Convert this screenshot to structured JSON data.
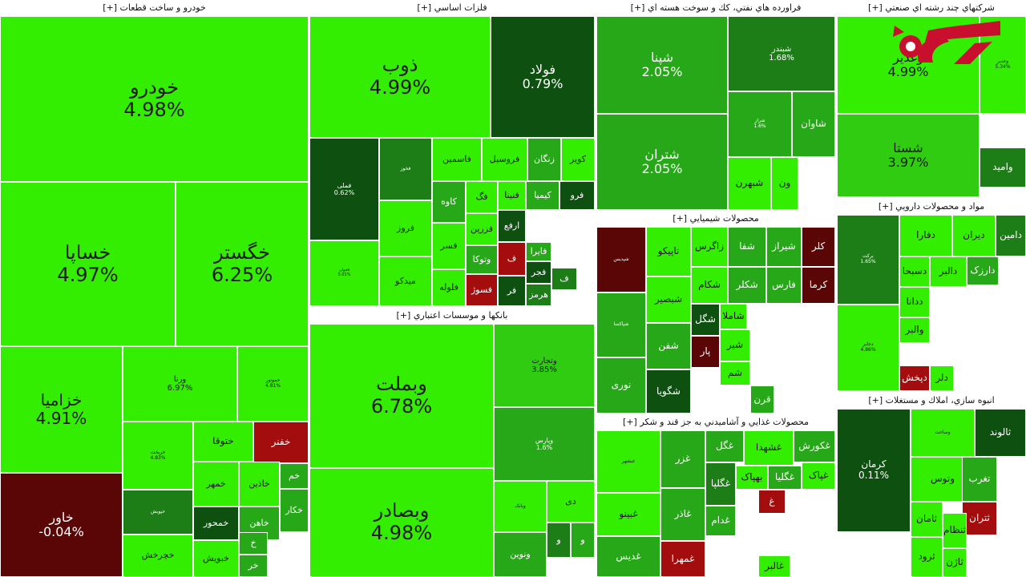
{
  "colors": {
    "bright_green": "#33ee00",
    "mid_green": "#2fcc12",
    "green": "#27a818",
    "dark_green": "#1d7e18",
    "darkest_green": "#0e5010",
    "red": "#a30d0d",
    "dark_red": "#5a0606",
    "header_text": "#111111"
  },
  "sectors": [
    {
      "name": "خودرو و ساخت قطعات [+]",
      "tiles": [
        {
          "symbol": "خودرو",
          "change": "4.98%",
          "color": "bright_green"
        },
        {
          "symbol": "خساپا",
          "change": "4.97%",
          "color": "bright_green"
        },
        {
          "symbol": "خگستر",
          "change": "6.25%",
          "color": "bright_green"
        },
        {
          "symbol": "خزامیا",
          "change": "4.91%",
          "color": "bright_green"
        },
        {
          "symbol": "خاور",
          "change": "-0.04%",
          "color": "dark_red"
        },
        {
          "symbol": "ورنا",
          "change": "6.97%",
          "color": "bright_green"
        },
        {
          "symbol": "خموتور",
          "change": "4.81%",
          "color": "bright_green"
        },
        {
          "symbol": "خریخت",
          "change": "4.83%",
          "color": "bright_green"
        },
        {
          "symbol": "ختوقا",
          "change": "",
          "color": "bright_green"
        },
        {
          "symbol": "خفنر",
          "change": "",
          "color": "red"
        },
        {
          "symbol": "خمهر",
          "change": "",
          "color": "bright_green"
        },
        {
          "symbol": "خاذین",
          "change": "",
          "color": "bright_green"
        },
        {
          "symbol": "خم",
          "change": "",
          "color": "green"
        },
        {
          "symbol": "خپویش",
          "change": "",
          "color": "dark_green"
        },
        {
          "symbol": "خمحور",
          "change": "",
          "color": "darkest_green"
        },
        {
          "symbol": "خاهن",
          "change": "",
          "color": "green"
        },
        {
          "symbol": "خکار",
          "change": "",
          "color": "green"
        },
        {
          "symbol": "خچرخش",
          "change": "",
          "color": "bright_green"
        },
        {
          "symbol": "خبویش",
          "change": "",
          "color": "bright_green"
        },
        {
          "symbol": "خ",
          "change": "",
          "color": "green"
        },
        {
          "symbol": "خر",
          "change": "",
          "color": "green"
        }
      ]
    },
    {
      "name": "فلزات اساسي [+]",
      "tiles": [
        {
          "symbol": "ذوب",
          "change": "4.99%",
          "color": "bright_green"
        },
        {
          "symbol": "فولاد",
          "change": "0.79%",
          "color": "darkest_green"
        },
        {
          "symbol": "فملی",
          "change": "0.62%",
          "color": "darkest_green"
        },
        {
          "symbol": "فخوز",
          "change": "",
          "color": "dark_green"
        },
        {
          "symbol": "فاسمین",
          "change": "",
          "color": "bright_green"
        },
        {
          "symbol": "فروسیل",
          "change": "",
          "color": "bright_green"
        },
        {
          "symbol": "زنگان",
          "change": "",
          "color": "green"
        },
        {
          "symbol": "کویر",
          "change": "",
          "color": "bright_green"
        },
        {
          "symbol": "فروز",
          "change": "",
          "color": "bright_green"
        },
        {
          "symbol": "کاوه",
          "change": "",
          "color": "green"
        },
        {
          "symbol": "فگ",
          "change": "",
          "color": "bright_green"
        },
        {
          "symbol": "فنینا",
          "change": "",
          "color": "bright_green"
        },
        {
          "symbol": "کیمیا",
          "change": "",
          "color": "green"
        },
        {
          "symbol": "فرو",
          "change": "",
          "color": "darkest_green"
        },
        {
          "symbol": "فسر",
          "change": "",
          "color": "bright_green"
        },
        {
          "symbol": "فزرین",
          "change": "",
          "color": "bright_green"
        },
        {
          "symbol": "ارفع",
          "change": "",
          "color": "darkest_green"
        },
        {
          "symbol": "فجهان",
          "change": "3.01%",
          "color": "bright_green"
        },
        {
          "symbol": "میدکو",
          "change": "",
          "color": "bright_green"
        },
        {
          "symbol": "فلوله",
          "change": "",
          "color": "bright_green"
        },
        {
          "symbol": "وتوکا",
          "change": "",
          "color": "green"
        },
        {
          "symbol": "فسوژ",
          "change": "",
          "color": "red"
        },
        {
          "symbol": "ف",
          "change": "",
          "color": "red"
        },
        {
          "symbol": "فایرا",
          "change": "",
          "color": "green"
        },
        {
          "symbol": "فجر",
          "change": "",
          "color": "darkest_green"
        },
        {
          "symbol": "فر",
          "change": "",
          "color": "darkest_green"
        },
        {
          "symbol": "هرمز",
          "change": "",
          "color": "dark_green"
        },
        {
          "symbol": "ف",
          "change": "",
          "color": "dark_green"
        }
      ]
    },
    {
      "name": "بانکها و موسسات اعتباري [+]",
      "tiles": [
        {
          "symbol": "وبملت",
          "change": "6.78%",
          "color": "bright_green"
        },
        {
          "symbol": "وتجارت",
          "change": "3.85%",
          "color": "mid_green"
        },
        {
          "symbol": "وپارس",
          "change": "1.6%",
          "color": "green"
        },
        {
          "symbol": "وبصادر",
          "change": "4.98%",
          "color": "bright_green"
        },
        {
          "symbol": "وبانک",
          "change": "",
          "color": "bright_green"
        },
        {
          "symbol": "دی",
          "change": "",
          "color": "bright_green"
        },
        {
          "symbol": "ونوین",
          "change": "",
          "color": "green"
        },
        {
          "symbol": "و",
          "change": "",
          "color": "dark_green"
        },
        {
          "symbol": "و",
          "change": "",
          "color": "green"
        }
      ]
    },
    {
      "name": "فراورده هاي نفتي، كك و سوخت هسته اي [+]",
      "tiles": [
        {
          "symbol": "شپنا",
          "change": "2.05%",
          "color": "green"
        },
        {
          "symbol": "شبندر",
          "change": "1.68%",
          "color": "dark_green"
        },
        {
          "symbol": "شتران",
          "change": "2.05%",
          "color": "green"
        },
        {
          "symbol": "شراز",
          "change": "1.6%",
          "color": "green"
        },
        {
          "symbol": "شاوان",
          "change": "",
          "color": "green"
        },
        {
          "symbol": "شبهرن",
          "change": "",
          "color": "bright_green"
        },
        {
          "symbol": "ون",
          "change": "",
          "color": "bright_green"
        }
      ]
    },
    {
      "name": "محصولات شيميايي [+]",
      "tiles": [
        {
          "symbol": "شپدیس",
          "change": "",
          "color": "dark_red"
        },
        {
          "symbol": "تاپیکو",
          "change": "",
          "color": "bright_green"
        },
        {
          "symbol": "زاگرس",
          "change": "",
          "color": "bright_green"
        },
        {
          "symbol": "شفا",
          "change": "",
          "color": "green"
        },
        {
          "symbol": "شیراز",
          "change": "",
          "color": "green"
        },
        {
          "symbol": "کلر",
          "change": "",
          "color": "dark_red"
        },
        {
          "symbol": "شبصیر",
          "change": "",
          "color": "bright_green"
        },
        {
          "symbol": "شکام",
          "change": "",
          "color": "bright_green"
        },
        {
          "symbol": "شکلر",
          "change": "",
          "color": "green"
        },
        {
          "symbol": "فارس",
          "change": "",
          "color": "green"
        },
        {
          "symbol": "کرما",
          "change": "",
          "color": "dark_red"
        },
        {
          "symbol": "شگل",
          "change": "",
          "color": "darkest_green"
        },
        {
          "symbol": "شاملا",
          "change": "",
          "color": "bright_green"
        },
        {
          "symbol": "شفن",
          "change": "",
          "color": "green"
        },
        {
          "symbol": "شیر",
          "change": "",
          "color": "bright_green"
        },
        {
          "symbol": "پار",
          "change": "",
          "color": "dark_red"
        },
        {
          "symbol": "شم",
          "change": "",
          "color": "bright_green"
        },
        {
          "symbol": "نوری",
          "change": "",
          "color": "green"
        },
        {
          "symbol": "شگویا",
          "change": "",
          "color": "darkest_green"
        },
        {
          "symbol": "قرن",
          "change": "",
          "color": "green"
        },
        {
          "symbol": "شپاکسا",
          "change": "",
          "color": "green"
        }
      ]
    },
    {
      "name": "محصولات غذايي و آشاميدني به جز قند و شكر [+]",
      "tiles": [
        {
          "symbol": "غبشهر",
          "change": "",
          "color": "bright_green"
        },
        {
          "symbol": "غزر",
          "change": "",
          "color": "green"
        },
        {
          "symbol": "غگل",
          "change": "",
          "color": "green"
        },
        {
          "symbol": "غشهدا",
          "change": "",
          "color": "bright_green"
        },
        {
          "symbol": "غکورش",
          "change": "",
          "color": "green"
        },
        {
          "symbol": "غبینو",
          "change": "",
          "color": "bright_green"
        },
        {
          "symbol": "غگلپا",
          "change": "",
          "color": "dark_green"
        },
        {
          "symbol": "بهپاک",
          "change": "",
          "color": "bright_green"
        },
        {
          "symbol": "غگلیا",
          "change": "",
          "color": "green"
        },
        {
          "symbol": "غپاک",
          "change": "",
          "color": "bright_green"
        },
        {
          "symbol": "غاذر",
          "change": "",
          "color": "green"
        },
        {
          "symbol": "غدام",
          "change": "",
          "color": "green"
        },
        {
          "symbol": "غدیس",
          "change": "",
          "color": "green"
        },
        {
          "symbol": "غمهرا",
          "change": "",
          "color": "red"
        },
        {
          "symbol": "غالبر",
          "change": "",
          "color": "bright_green"
        },
        {
          "symbol": "غ",
          "change": "",
          "color": "red"
        }
      ]
    },
    {
      "name": "شركتهاي چند رشته اي صنعتي [+]",
      "tiles": [
        {
          "symbol": "وغدیر",
          "change": "4.99%",
          "color": "bright_green"
        },
        {
          "symbol": "وغدیر",
          "change": "5.34%",
          "color": "bright_green"
        },
        {
          "symbol": "شستا",
          "change": "3.97%",
          "color": "mid_green"
        },
        {
          "symbol": "وامید",
          "change": "",
          "color": "dark_green"
        }
      ]
    },
    {
      "name": "مواد و محصولات دارويي [+]",
      "tiles": [
        {
          "symbol": "برکت",
          "change": "1.65%",
          "color": "dark_green"
        },
        {
          "symbol": "دفارا",
          "change": "",
          "color": "bright_green"
        },
        {
          "symbol": "دیران",
          "change": "",
          "color": "bright_green"
        },
        {
          "symbol": "دامین",
          "change": "",
          "color": "dark_green"
        },
        {
          "symbol": "دسبحا",
          "change": "",
          "color": "bright_green"
        },
        {
          "symbol": "دالبر",
          "change": "",
          "color": "bright_green"
        },
        {
          "symbol": "دارزک",
          "change": "",
          "color": "green"
        },
        {
          "symbol": "دجابر",
          "change": "4.86%",
          "color": "bright_green"
        },
        {
          "symbol": "ددانا",
          "change": "",
          "color": "bright_green"
        },
        {
          "symbol": "والبر",
          "change": "",
          "color": "bright_green"
        },
        {
          "symbol": "دلر",
          "change": "",
          "color": "bright_green"
        },
        {
          "symbol": "دپخش",
          "change": "",
          "color": "red"
        }
      ]
    },
    {
      "name": "انبوه سازي، املاك و مستغلات [+]",
      "tiles": [
        {
          "symbol": "کرمان",
          "change": "0.11%",
          "color": "darkest_green"
        },
        {
          "symbol": "وساخت",
          "change": "",
          "color": "bright_green"
        },
        {
          "symbol": "ثالوند",
          "change": "",
          "color": "darkest_green"
        },
        {
          "symbol": "وتوس",
          "change": "",
          "color": "bright_green"
        },
        {
          "symbol": "ثامان",
          "change": "",
          "color": "bright_green"
        },
        {
          "symbol": "تغرب",
          "change": "",
          "color": "green"
        },
        {
          "symbol": "ثتران",
          "change": "",
          "color": "red"
        },
        {
          "symbol": "ثنظام",
          "change": "",
          "color": "bright_green"
        },
        {
          "symbol": "ثرود",
          "change": "",
          "color": "bright_green"
        },
        {
          "symbol": "ثاژن",
          "change": "",
          "color": "bright_green"
        }
      ]
    }
  ]
}
